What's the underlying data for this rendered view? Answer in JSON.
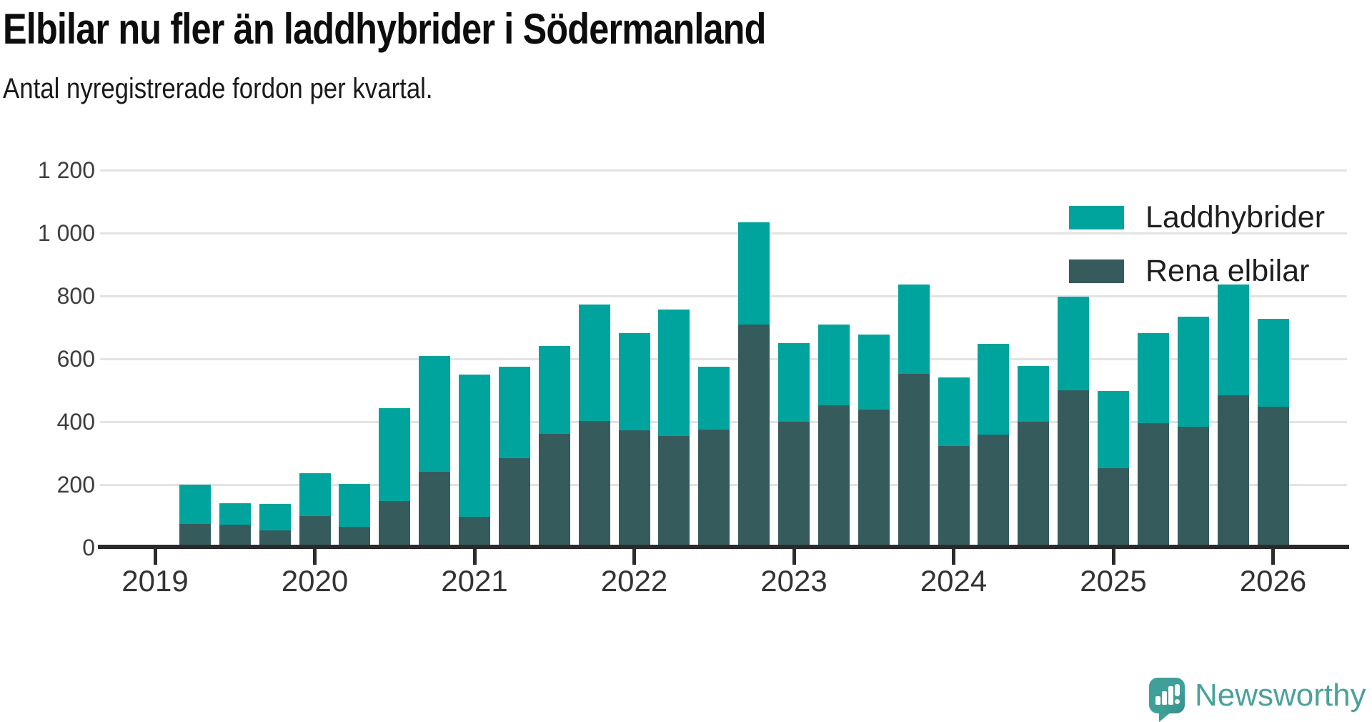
{
  "header": {
    "title": "Elbilar nu fler än laddhybrider i Södermanland",
    "subtitle": "Antal nyregistrerade fordon per kvartal."
  },
  "legend": {
    "items": [
      {
        "label": "Laddhybrider",
        "color": "#00a49c"
      },
      {
        "label": "Rena elbilar",
        "color": "#365b5d"
      }
    ]
  },
  "footer": {
    "brand": "Newsworthy",
    "brand_color": "#4aa19b",
    "icon": "newsworthy-speech-bubble-chart-icon"
  },
  "chart_data": {
    "type": "bar",
    "stacked": true,
    "title": "Elbilar nu fler än laddhybrider i Södermanland",
    "subtitle": "Antal nyregistrerade fordon per kvartal.",
    "xlabel": "",
    "ylabel": "",
    "ylim": [
      0,
      1200
    ],
    "yticks": [
      0,
      200,
      400,
      600,
      800,
      1000,
      1200
    ],
    "ytick_labels": [
      "0",
      "200",
      "400",
      "600",
      "800",
      "1 000",
      "1 200"
    ],
    "xtick_labels": [
      "2019",
      "2020",
      "2021",
      "2022",
      "2023",
      "2024",
      "2025",
      "2026"
    ],
    "grid": true,
    "legend_position": "top-right",
    "categories": [
      "2019 Q2",
      "2019 Q3",
      "2019 Q4",
      "2020 Q1",
      "2020 Q2",
      "2020 Q3",
      "2020 Q4",
      "2021 Q1",
      "2021 Q2",
      "2021 Q3",
      "2021 Q4",
      "2022 Q1",
      "2022 Q2",
      "2022 Q3",
      "2022 Q4",
      "2023 Q1",
      "2023 Q2",
      "2023 Q3",
      "2023 Q4",
      "2024 Q1",
      "2024 Q2",
      "2024 Q3",
      "2024 Q4",
      "2025 Q1",
      "2025 Q2",
      "2025 Q3",
      "2025 Q4",
      "2026 Q1"
    ],
    "series": [
      {
        "name": "Rena elbilar",
        "color": "#365b5d",
        "values": [
          74,
          72,
          54,
          99,
          66,
          148,
          242,
          98,
          285,
          362,
          403,
          373,
          355,
          376,
          710,
          399,
          453,
          438,
          553,
          322,
          360,
          400,
          500,
          252,
          396,
          384,
          485,
          448
        ]
      },
      {
        "name": "Laddhybrider",
        "color": "#00a49c",
        "values": [
          126,
          70,
          85,
          137,
          137,
          296,
          366,
          451,
          291,
          278,
          369,
          309,
          402,
          200,
          323,
          252,
          257,
          240,
          284,
          218,
          288,
          178,
          298,
          245,
          286,
          351,
          352,
          279
        ]
      }
    ]
  }
}
